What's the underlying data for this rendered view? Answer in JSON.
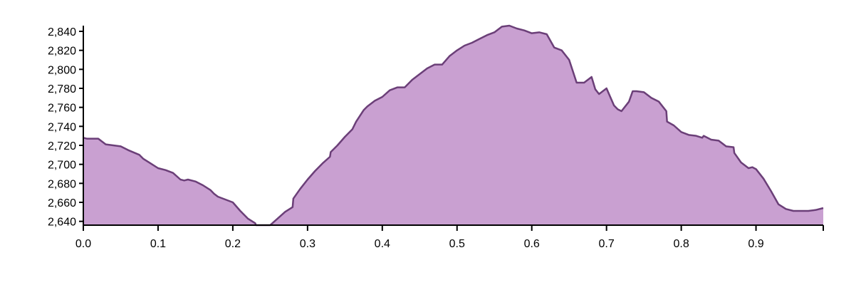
{
  "chart_data": {
    "type": "area",
    "title": "",
    "xlabel": "",
    "ylabel": "",
    "xlim": [
      0,
      0.99
    ],
    "ylim": [
      2636,
      2846
    ],
    "grid": false,
    "colors": {
      "fill": "#c9a0d1",
      "stroke": "#6b3f78"
    },
    "x_ticks": [
      "0.0",
      "0.1",
      "0.2",
      "0.3",
      "0.4",
      "0.5",
      "0.6",
      "0.7",
      "0.8",
      "0.9"
    ],
    "y_ticks": [
      "2,640",
      "2,660",
      "2,680",
      "2,700",
      "2,720",
      "2,740",
      "2,760",
      "2,780",
      "2,800",
      "2,820",
      "2,840"
    ],
    "series": [
      {
        "x": [
          0.0,
          0.005,
          0.01,
          0.02,
          0.03,
          0.04,
          0.05,
          0.06,
          0.075,
          0.08,
          0.09,
          0.1,
          0.11,
          0.12,
          0.13,
          0.135,
          0.14,
          0.15,
          0.16,
          0.17,
          0.175,
          0.18,
          0.19,
          0.2,
          0.21,
          0.22,
          0.23,
          0.231,
          0.24,
          0.25,
          0.26,
          0.27,
          0.28,
          0.281,
          0.29,
          0.3,
          0.31,
          0.32,
          0.33,
          0.331,
          0.34,
          0.35,
          0.36,
          0.365,
          0.37,
          0.375,
          0.38,
          0.39,
          0.4,
          0.41,
          0.42,
          0.43,
          0.44,
          0.45,
          0.46,
          0.47,
          0.48,
          0.49,
          0.5,
          0.51,
          0.52,
          0.53,
          0.54,
          0.55,
          0.56,
          0.57,
          0.58,
          0.59,
          0.6,
          0.61,
          0.62,
          0.63,
          0.64,
          0.65,
          0.66,
          0.67,
          0.68,
          0.685,
          0.69,
          0.7,
          0.705,
          0.71,
          0.715,
          0.72,
          0.73,
          0.735,
          0.74,
          0.75,
          0.76,
          0.77,
          0.78,
          0.781,
          0.79,
          0.8,
          0.81,
          0.82,
          0.828,
          0.83,
          0.84,
          0.85,
          0.86,
          0.87,
          0.871,
          0.88,
          0.89,
          0.895,
          0.9,
          0.91,
          0.92,
          0.93,
          0.94,
          0.95,
          0.96,
          0.97,
          0.98,
          0.99
        ],
        "y": [
          2728,
          2727,
          2727,
          2727,
          2721,
          2720,
          2719,
          2715,
          2710,
          2706,
          2701,
          2696,
          2694,
          2691,
          2684,
          2683,
          2684,
          2682,
          2678,
          2673,
          2669,
          2666,
          2663,
          2660,
          2651,
          2643,
          2638,
          2636,
          2636,
          2636,
          2643,
          2650,
          2655,
          2664,
          2674,
          2684,
          2693,
          2701,
          2708,
          2713,
          2720,
          2729,
          2737,
          2745,
          2751,
          2757,
          2761,
          2767,
          2771,
          2778,
          2781,
          2781,
          2789,
          2795,
          2801,
          2805,
          2805,
          2814,
          2820,
          2825,
          2828,
          2832,
          2836,
          2839,
          2845,
          2846,
          2843,
          2841,
          2838,
          2839,
          2837,
          2823,
          2820,
          2810,
          2786,
          2786,
          2792,
          2779,
          2774,
          2780,
          2771,
          2762,
          2758,
          2756,
          2766,
          2777,
          2777,
          2776,
          2770,
          2766,
          2756,
          2745,
          2741,
          2734,
          2731,
          2730,
          2728,
          2730,
          2726,
          2725,
          2719,
          2718,
          2712,
          2702,
          2696,
          2697,
          2695,
          2685,
          2672,
          2658,
          2653,
          2651,
          2651,
          2651,
          2652,
          2654
        ]
      }
    ]
  }
}
